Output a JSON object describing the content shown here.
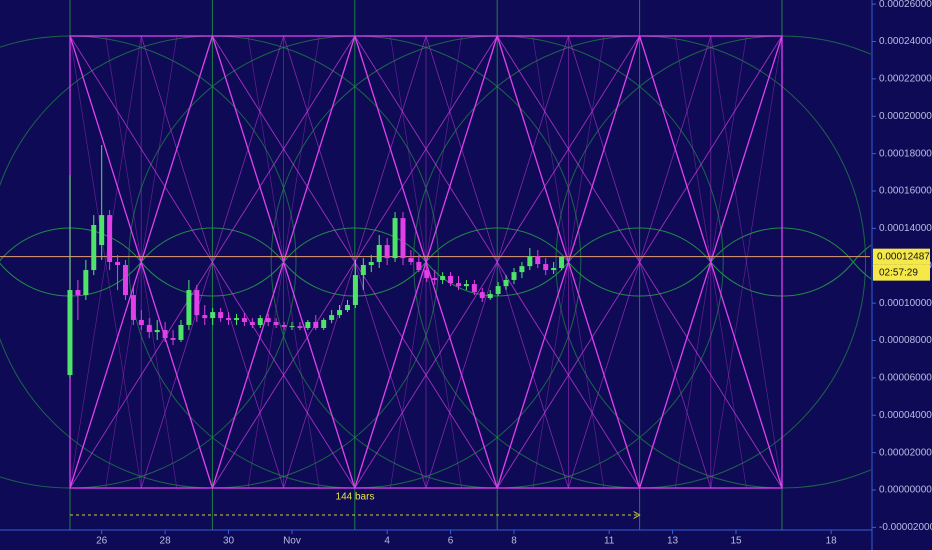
{
  "chart_data": {
    "type": "candlestick",
    "x": [
      0,
      2,
      4,
      6,
      8,
      10,
      12,
      14,
      16,
      18,
      20,
      22,
      24,
      26,
      28,
      30,
      32,
      34,
      36,
      38,
      40,
      42,
      44,
      46,
      48,
      50,
      52,
      54,
      56,
      58,
      60,
      62,
      64,
      66,
      68,
      70,
      72,
      74,
      76,
      78,
      80,
      82,
      84,
      86,
      88,
      90,
      92,
      94,
      96,
      98,
      100,
      102,
      104,
      106,
      108,
      110,
      112,
      114,
      116,
      118,
      120,
      122,
      124
    ],
    "open": [
      6.15e-05,
      0.000107,
      0.0001043,
      0.0001177,
      0.0001311,
      0.0001471,
      0.000122,
      0.0001204,
      0.0001043,
      9.1e-05,
      8.83e-05,
      8.45e-05,
      8.56e-05,
      8.13e-05,
      8.03e-05,
      8.83e-05,
      0.000107,
      9.36e-05,
      9.2e-05,
      9.52e-05,
      9.2e-05,
      9.1e-05,
      9.2e-05,
      8.99e-05,
      8.83e-05,
      9.2e-05,
      8.99e-05,
      8.83e-05,
      8.72e-05,
      8.77e-05,
      8.67e-05,
      8.99e-05,
      8.67e-05,
      9.1e-05,
      9.36e-05,
      9.63e-05,
      9.9e-05,
      0.000115,
      0.0001204,
      0.000122,
      0.0001311,
      0.0001241,
      0.0001455,
      0.0001241,
      0.000122,
      0.0001177,
      0.0001134,
      0.0001124,
      0.0001145,
      0.0001107,
      0.0001091,
      0.0001102,
      0.0001059,
      0.0001027,
      0.0001049,
      0.0001091,
      0.0001124,
      0.0001166,
      0.0001198,
      0.0001252,
      0.0001209,
      0.0001177,
      0.0001188
    ],
    "high": [
      0.0001685,
      0.0001124,
      0.0001231,
      0.0001471,
      0.0001846,
      0.0001498,
      0.0001257,
      0.0001231,
      0.0001097,
      9.63e-05,
      9.2e-05,
      9.1e-05,
      8.99e-05,
      8.56e-05,
      9.1e-05,
      0.0001124,
      0.0001097,
      9.9e-05,
      9.74e-05,
      9.74e-05,
      9.52e-05,
      9.42e-05,
      9.47e-05,
      9.2e-05,
      9.36e-05,
      9.42e-05,
      9.2e-05,
      8.99e-05,
      8.99e-05,
      8.99e-05,
      9.1e-05,
      9.36e-05,
      9.2e-05,
      9.63e-05,
      9.9e-05,
      0.0001017,
      0.0001231,
      0.0001241,
      0.0001257,
      0.0001364,
      0.0001348,
      0.0001487,
      0.0001487,
      0.0001284,
      0.0001257,
      0.000122,
      0.0001177,
      0.0001166,
      0.0001166,
      0.0001145,
      0.0001124,
      0.0001124,
      0.0001081,
      0.000107,
      0.0001113,
      0.000115,
      0.0001188,
      0.000122,
      0.0001295,
      0.0001284,
      0.0001241,
      0.000122,
      0.0001252
    ],
    "low": [
      5.99e-05,
      9.1e-05,
      0.0001017,
      0.000115,
      0.0001231,
      0.0001177,
      0.000107,
      0.0001017,
      8.83e-05,
      8.56e-05,
      8.13e-05,
      8.03e-05,
      7.92e-05,
      7.76e-05,
      7.92e-05,
      8.56e-05,
      8.99e-05,
      8.83e-05,
      8.83e-05,
      8.99e-05,
      8.83e-05,
      8.83e-05,
      8.77e-05,
      8.67e-05,
      8.67e-05,
      8.77e-05,
      8.67e-05,
      8.56e-05,
      8.56e-05,
      8.56e-05,
      8.56e-05,
      8.56e-05,
      8.56e-05,
      8.93e-05,
      9.2e-05,
      9.52e-05,
      9.74e-05,
      0.000107,
      0.0001166,
      0.0001188,
      0.0001204,
      0.000122,
      0.0001204,
      0.0001204,
      0.0001166,
      0.0001113,
      0.0001097,
      0.0001102,
      0.0001091,
      0.000107,
      0.000107,
      0.0001043,
      0.0001006,
      0.0001017,
      0.0001038,
      0.000107,
      0.0001102,
      0.0001134,
      0.0001177,
      0.0001188,
      0.000115,
      0.0001156,
      0.0001177
    ],
    "close": [
      0.000107,
      0.0001043,
      0.0001177,
      0.0001418,
      0.0001471,
      0.000122,
      0.0001204,
      0.0001043,
      9.1e-05,
      8.83e-05,
      8.45e-05,
      8.56e-05,
      8.13e-05,
      8.03e-05,
      8.83e-05,
      0.000107,
      9.36e-05,
      9.2e-05,
      9.52e-05,
      9.2e-05,
      9.1e-05,
      9.2e-05,
      8.99e-05,
      8.83e-05,
      9.2e-05,
      8.99e-05,
      8.83e-05,
      8.72e-05,
      8.77e-05,
      8.67e-05,
      8.99e-05,
      8.67e-05,
      9.1e-05,
      9.36e-05,
      9.63e-05,
      9.9e-05,
      0.000115,
      0.0001204,
      0.000122,
      0.0001311,
      0.0001241,
      0.0001455,
      0.0001241,
      0.000122,
      0.0001177,
      0.0001134,
      0.0001124,
      0.0001145,
      0.0001107,
      0.0001091,
      0.0001102,
      0.0001059,
      0.0001027,
      0.0001049,
      0.0001091,
      0.0001124,
      0.0001166,
      0.0001198,
      0.0001252,
      0.0001209,
      0.0001177,
      0.0001188,
      0.00012487
    ],
    "up_color": "#4fe36a",
    "down_color": "#e23fe6",
    "xlim": [
      -17.65,
      201.8
    ],
    "xticks": [
      {
        "value": 8,
        "label": "26"
      },
      {
        "value": 24,
        "label": "28"
      },
      {
        "value": 40,
        "label": "30"
      },
      {
        "value": 56,
        "label": "Nov"
      },
      {
        "value": 80,
        "label": "4"
      },
      {
        "value": 96,
        "label": "6"
      },
      {
        "value": 112,
        "label": "8"
      },
      {
        "value": 136,
        "label": "11"
      },
      {
        "value": 152,
        "label": "13"
      },
      {
        "value": 168,
        "label": "15"
      },
      {
        "value": 192,
        "label": "18"
      }
    ],
    "ylim": [
      -2.14e-05,
      0.0002622
    ],
    "yticks": [
      {
        "value": 0.00026,
        "label": "0.00026000"
      },
      {
        "value": 0.00024,
        "label": "0.00024000"
      },
      {
        "value": 0.00022,
        "label": "0.00022000"
      },
      {
        "value": 0.0002,
        "label": "0.00020000"
      },
      {
        "value": 0.00018,
        "label": "0.00018000"
      },
      {
        "value": 0.00016,
        "label": "0.00016000"
      },
      {
        "value": 0.00014,
        "label": "0.00014000"
      },
      {
        "value": 0.00012,
        "label": "0.00012000"
      },
      {
        "value": 0.0001,
        "label": "0.00010000"
      },
      {
        "value": 8e-05,
        "label": "0.00008000"
      },
      {
        "value": 6e-05,
        "label": "0.00006000"
      },
      {
        "value": 4e-05,
        "label": "0.00004000"
      },
      {
        "value": 2e-05,
        "label": "0.00002000"
      },
      {
        "value": 0,
        "label": "0.00000000"
      },
      {
        "value": -2e-05,
        "label": "-0.00002000"
      }
    ],
    "last_price": 0.00012487,
    "countdown": "02:57:29",
    "annotation": "144 bars"
  }
}
